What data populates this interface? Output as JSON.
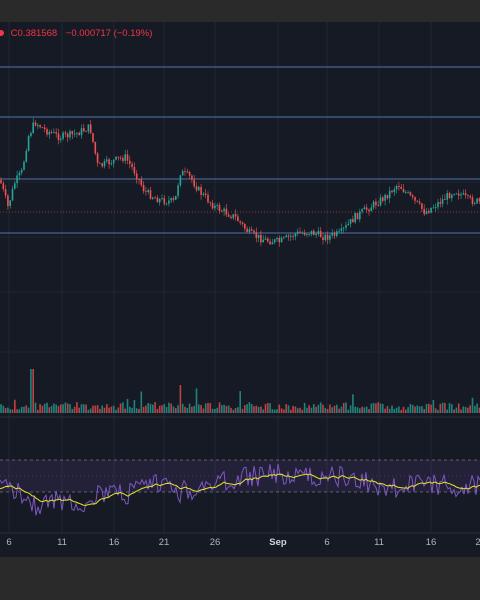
{
  "legend": {
    "close_prefix": "C",
    "close_value": "0.381568",
    "change": "−0.000717 (−0.19%)"
  },
  "colors": {
    "up": "#26a69a",
    "down": "#ef5350",
    "background": "#161a25",
    "hline": "#5b84c4",
    "rsi": "#7e57c2",
    "rsi_ma": "#e8e52a"
  },
  "x_axis": {
    "labels": [
      "6",
      "11",
      "16",
      "21",
      "26",
      "Sep",
      "6",
      "11",
      "16",
      "2"
    ]
  }
}
